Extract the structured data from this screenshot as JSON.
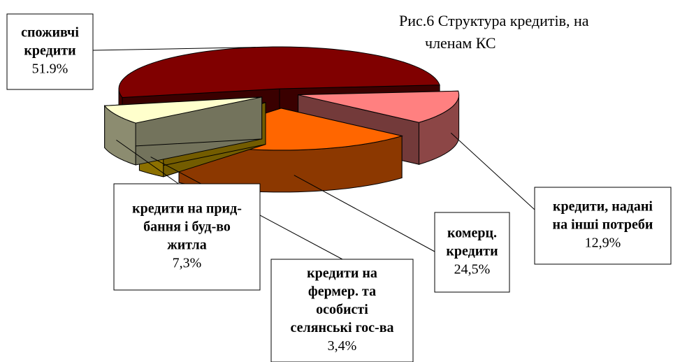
{
  "chart_data": {
    "type": "pie3d",
    "title": "Рис.6 Структура кредитів, на",
    "subtitle": "членам КС",
    "categories": [
      [
        "споживчі",
        "кредити"
      ],
      [
        "кредити, надані",
        "на інші потреби"
      ],
      [
        "комерц.",
        "кредити"
      ],
      [
        "кредити на",
        "фермер. та",
        "особисті",
        "селянські гос-ва"
      ],
      [
        "кредити на прид-",
        "бання і буд-во",
        "житла"
      ]
    ],
    "values": [
      51.9,
      12.9,
      24.5,
      3.4,
      7.3
    ],
    "value_labels": [
      "51.9%",
      "12,9%",
      "24,5%",
      "3,4%",
      "7,3%"
    ],
    "colors": [
      "#800000",
      "#ff8080",
      "#ff6600",
      "#ffcc00",
      "#ffffcc"
    ]
  }
}
